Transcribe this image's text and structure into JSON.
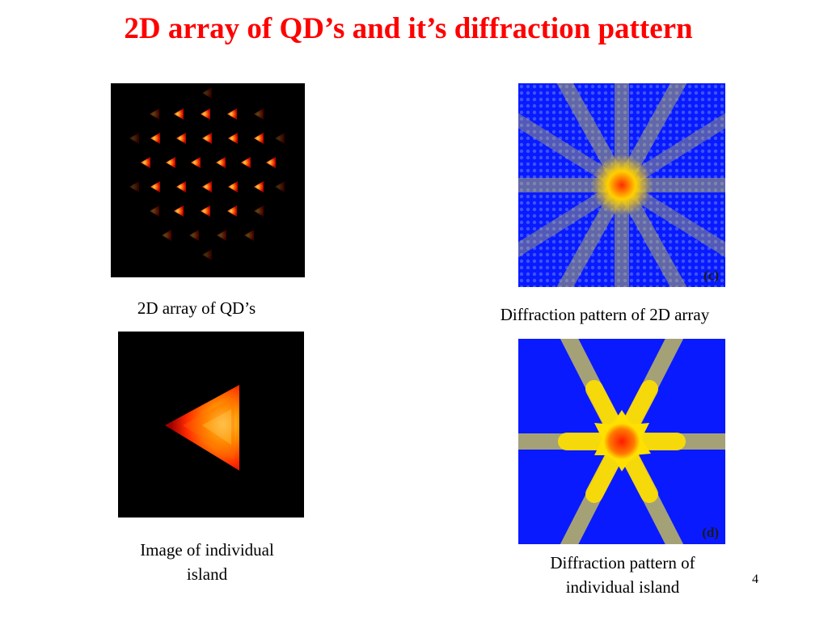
{
  "slide": {
    "title": "2D array of QD’s and it’s diffraction pattern",
    "page_number": "4"
  },
  "panels": {
    "array_image": {
      "caption": "2D array of QD’s"
    },
    "array_diffraction": {
      "caption": "Diffraction pattern of 2D array",
      "tag": "(c)"
    },
    "island_image": {
      "caption_line1": "Image of individual",
      "caption_line2": "island"
    },
    "island_diffraction": {
      "caption_line1": "Diffraction pattern of",
      "caption_line2": "individual island",
      "tag": "(d)"
    }
  },
  "colors": {
    "title": "#ff0000",
    "diffraction_background": "#0a1aff",
    "qd_core": "#ffcc00",
    "qd_edge": "#e01000"
  }
}
